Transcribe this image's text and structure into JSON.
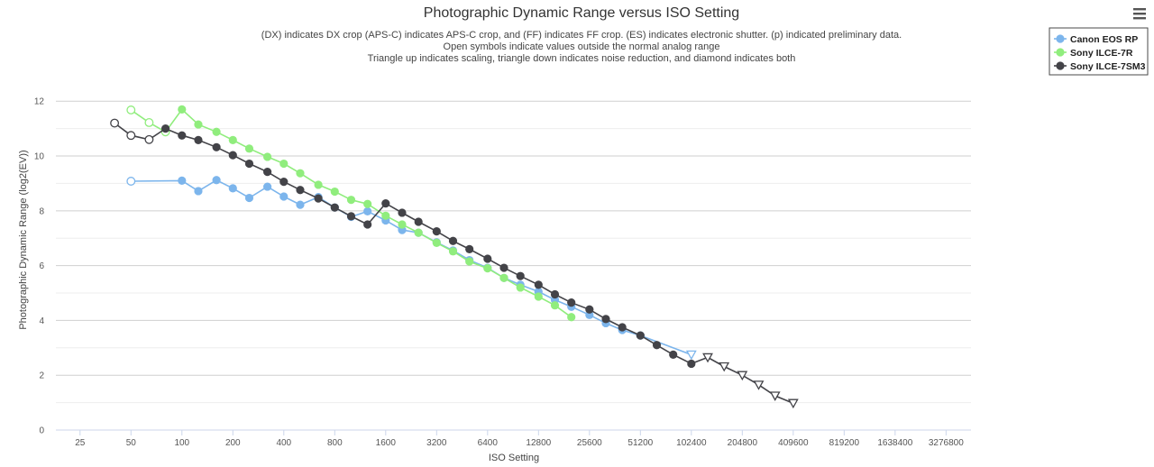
{
  "chart_data": {
    "type": "line",
    "title": "Photographic Dynamic Range versus ISO Setting",
    "subtitle_lines": [
      "(DX) indicates DX crop (APS-C) indicates APS-C crop, and (FF) indicates FF crop. (ES) indicates electronic shutter. (p) indicated preliminary data.",
      "Open symbols indicate values outside the normal analog range",
      "Triangle up indicates scaling, triangle down indicates noise reduction, and diamond indicates both"
    ],
    "xlabel": "ISO Setting",
    "ylabel": "Photographic Dynamic Range (log2(EV))",
    "x_scale": "log2",
    "xlim": [
      18,
      4600000
    ],
    "x_ticks": [
      25,
      50,
      100,
      200,
      400,
      800,
      1600,
      3200,
      6400,
      12800,
      25600,
      51200,
      102400,
      204800,
      409600,
      819200,
      1638400,
      3276800
    ],
    "ylim": [
      0,
      12.6
    ],
    "y_ticks": [
      0,
      2,
      4,
      6,
      8,
      10,
      12
    ],
    "grid": true,
    "legend_position": "top-right",
    "menu_icon": "hamburger-menu-icon",
    "series": [
      {
        "name": "Canon EOS RP",
        "color": "#7cb5ec",
        "points": [
          {
            "x": 50,
            "y": 9.08,
            "m": "open-circle"
          },
          {
            "x": 100,
            "y": 9.1,
            "m": "circle"
          },
          {
            "x": 125,
            "y": 8.72,
            "m": "circle"
          },
          {
            "x": 160,
            "y": 9.12,
            "m": "circle"
          },
          {
            "x": 200,
            "y": 8.82,
            "m": "circle"
          },
          {
            "x": 250,
            "y": 8.47,
            "m": "circle"
          },
          {
            "x": 320,
            "y": 8.88,
            "m": "circle"
          },
          {
            "x": 400,
            "y": 8.52,
            "m": "circle"
          },
          {
            "x": 500,
            "y": 8.22,
            "m": "circle"
          },
          {
            "x": 640,
            "y": 8.5,
            "m": "circle"
          },
          {
            "x": 800,
            "y": 8.12,
            "m": "circle"
          },
          {
            "x": 1000,
            "y": 7.78,
            "m": "circle"
          },
          {
            "x": 1250,
            "y": 7.98,
            "m": "circle"
          },
          {
            "x": 1600,
            "y": 7.65,
            "m": "circle"
          },
          {
            "x": 2000,
            "y": 7.3,
            "m": "circle"
          },
          {
            "x": 2500,
            "y": 7.2,
            "m": "circle"
          },
          {
            "x": 3200,
            "y": 6.85,
            "m": "circle"
          },
          {
            "x": 4000,
            "y": 6.55,
            "m": "circle"
          },
          {
            "x": 5000,
            "y": 6.2,
            "m": "circle"
          },
          {
            "x": 6400,
            "y": 5.92,
            "m": "circle"
          },
          {
            "x": 8000,
            "y": 5.55,
            "m": "circle"
          },
          {
            "x": 10000,
            "y": 5.3,
            "m": "circle"
          },
          {
            "x": 12800,
            "y": 5.05,
            "m": "circle"
          },
          {
            "x": 16000,
            "y": 4.75,
            "m": "circle"
          },
          {
            "x": 20000,
            "y": 4.5,
            "m": "circle"
          },
          {
            "x": 25600,
            "y": 4.2,
            "m": "circle"
          },
          {
            "x": 32000,
            "y": 3.9,
            "m": "circle"
          },
          {
            "x": 40000,
            "y": 3.65,
            "m": "circle"
          },
          {
            "x": 51200,
            "y": 3.45,
            "m": "circle"
          },
          {
            "x": 102400,
            "y": 2.75,
            "m": "open-triangle-down"
          }
        ]
      },
      {
        "name": "Sony ILCE-7R",
        "color": "#90ed7d",
        "points": [
          {
            "x": 50,
            "y": 11.68,
            "m": "open-circle"
          },
          {
            "x": 64,
            "y": 11.22,
            "m": "open-circle"
          },
          {
            "x": 80,
            "y": 10.88,
            "m": "open-circle"
          },
          {
            "x": 100,
            "y": 11.7,
            "m": "circle"
          },
          {
            "x": 125,
            "y": 11.15,
            "m": "circle"
          },
          {
            "x": 160,
            "y": 10.88,
            "m": "circle"
          },
          {
            "x": 200,
            "y": 10.58,
            "m": "circle"
          },
          {
            "x": 250,
            "y": 10.27,
            "m": "circle"
          },
          {
            "x": 320,
            "y": 9.97,
            "m": "circle"
          },
          {
            "x": 400,
            "y": 9.72,
            "m": "circle"
          },
          {
            "x": 500,
            "y": 9.37,
            "m": "circle"
          },
          {
            "x": 640,
            "y": 8.95,
            "m": "circle"
          },
          {
            "x": 800,
            "y": 8.7,
            "m": "circle"
          },
          {
            "x": 1000,
            "y": 8.4,
            "m": "circle"
          },
          {
            "x": 1250,
            "y": 8.25,
            "m": "circle"
          },
          {
            "x": 1600,
            "y": 7.82,
            "m": "circle"
          },
          {
            "x": 2000,
            "y": 7.5,
            "m": "circle"
          },
          {
            "x": 2500,
            "y": 7.2,
            "m": "circle"
          },
          {
            "x": 3200,
            "y": 6.83,
            "m": "circle"
          },
          {
            "x": 4000,
            "y": 6.52,
            "m": "circle"
          },
          {
            "x": 5000,
            "y": 6.15,
            "m": "circle"
          },
          {
            "x": 6400,
            "y": 5.9,
            "m": "circle"
          },
          {
            "x": 8000,
            "y": 5.55,
            "m": "circle"
          },
          {
            "x": 10000,
            "y": 5.2,
            "m": "circle"
          },
          {
            "x": 12800,
            "y": 4.87,
            "m": "circle"
          },
          {
            "x": 16000,
            "y": 4.55,
            "m": "circle"
          },
          {
            "x": 20000,
            "y": 4.12,
            "m": "circle"
          }
        ]
      },
      {
        "name": "Sony ILCE-7SM3",
        "color": "#434348",
        "points": [
          {
            "x": 40,
            "y": 11.2,
            "m": "open-circle"
          },
          {
            "x": 50,
            "y": 10.75,
            "m": "open-circle"
          },
          {
            "x": 64,
            "y": 10.6,
            "m": "open-circle"
          },
          {
            "x": 80,
            "y": 11.0,
            "m": "circle"
          },
          {
            "x": 100,
            "y": 10.75,
            "m": "circle"
          },
          {
            "x": 125,
            "y": 10.58,
            "m": "circle"
          },
          {
            "x": 160,
            "y": 10.32,
            "m": "circle"
          },
          {
            "x": 200,
            "y": 10.03,
            "m": "circle"
          },
          {
            "x": 250,
            "y": 9.72,
            "m": "circle"
          },
          {
            "x": 320,
            "y": 9.42,
            "m": "circle"
          },
          {
            "x": 400,
            "y": 9.06,
            "m": "circle"
          },
          {
            "x": 500,
            "y": 8.76,
            "m": "circle"
          },
          {
            "x": 640,
            "y": 8.45,
            "m": "circle"
          },
          {
            "x": 800,
            "y": 8.12,
            "m": "circle"
          },
          {
            "x": 1000,
            "y": 7.8,
            "m": "circle"
          },
          {
            "x": 1250,
            "y": 7.5,
            "m": "circle"
          },
          {
            "x": 1600,
            "y": 8.27,
            "m": "circle"
          },
          {
            "x": 2000,
            "y": 7.93,
            "m": "circle"
          },
          {
            "x": 2500,
            "y": 7.6,
            "m": "circle"
          },
          {
            "x": 3200,
            "y": 7.25,
            "m": "circle"
          },
          {
            "x": 4000,
            "y": 6.9,
            "m": "circle"
          },
          {
            "x": 5000,
            "y": 6.6,
            "m": "circle"
          },
          {
            "x": 6400,
            "y": 6.25,
            "m": "circle"
          },
          {
            "x": 8000,
            "y": 5.92,
            "m": "circle"
          },
          {
            "x": 10000,
            "y": 5.62,
            "m": "circle"
          },
          {
            "x": 12800,
            "y": 5.3,
            "m": "circle"
          },
          {
            "x": 16000,
            "y": 4.95,
            "m": "circle"
          },
          {
            "x": 20000,
            "y": 4.65,
            "m": "circle"
          },
          {
            "x": 25600,
            "y": 4.4,
            "m": "circle"
          },
          {
            "x": 32000,
            "y": 4.05,
            "m": "circle"
          },
          {
            "x": 40000,
            "y": 3.75,
            "m": "circle"
          },
          {
            "x": 51200,
            "y": 3.45,
            "m": "circle"
          },
          {
            "x": 64000,
            "y": 3.1,
            "m": "circle"
          },
          {
            "x": 80000,
            "y": 2.75,
            "m": "circle"
          },
          {
            "x": 102400,
            "y": 2.42,
            "m": "circle"
          },
          {
            "x": 128000,
            "y": 2.65,
            "m": "open-triangle-down"
          },
          {
            "x": 160000,
            "y": 2.32,
            "m": "open-triangle-down"
          },
          {
            "x": 204800,
            "y": 2.0,
            "m": "open-triangle-down"
          },
          {
            "x": 256000,
            "y": 1.65,
            "m": "open-triangle-down"
          },
          {
            "x": 320000,
            "y": 1.25,
            "m": "open-triangle-down"
          },
          {
            "x": 409600,
            "y": 0.98,
            "m": "open-triangle-down"
          }
        ]
      }
    ]
  }
}
